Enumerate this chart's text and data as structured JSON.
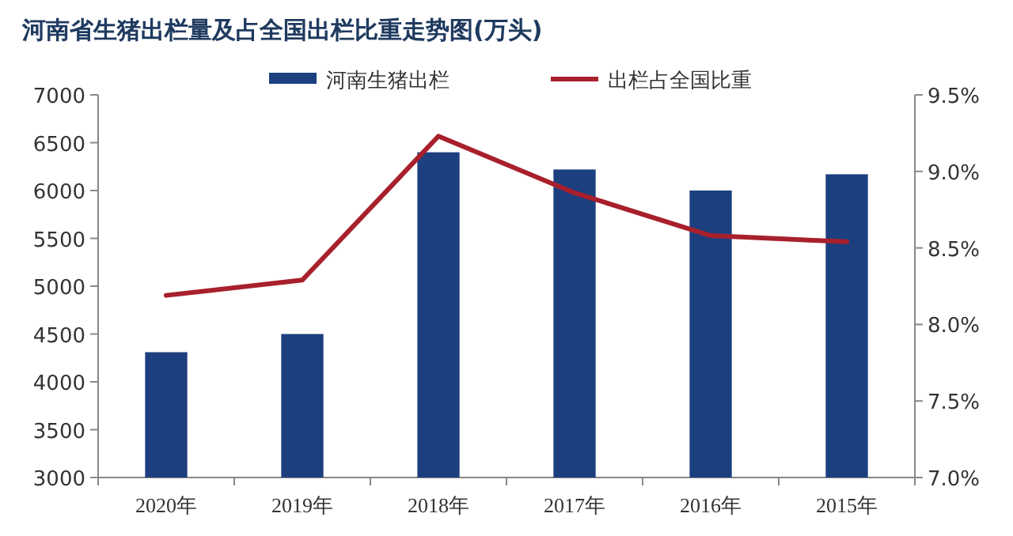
{
  "chart_data": {
    "type": "bar",
    "title": "河南省生猪出栏量及占全国出栏比重走势图(万头)",
    "categories": [
      "2020年",
      "2019年",
      "2018年",
      "2017年",
      "2016年",
      "2015年"
    ],
    "series": [
      {
        "name": "河南生猪出栏",
        "color": "#1c3f7f",
        "values": [
          4310,
          4500,
          6400,
          6220,
          6000,
          6170
        ]
      },
      {
        "name": "出栏占全国比重",
        "type": "line",
        "axis": "y2",
        "color": "#a8202c",
        "values": [
          8.19,
          8.29,
          9.23,
          8.86,
          8.58,
          8.54
        ]
      }
    ],
    "ylim": [
      3000,
      7000
    ],
    "yticks": [
      3000,
      3500,
      4000,
      4500,
      5000,
      5500,
      6000,
      6500,
      7000
    ],
    "y2lim": [
      7.0,
      9.5
    ],
    "y2ticks": [
      {
        "value": 7.0,
        "label": "7.0%"
      },
      {
        "value": 7.5,
        "label": "7.5%"
      },
      {
        "value": 8.0,
        "label": "8.0%"
      },
      {
        "value": 8.5,
        "label": "8.5%"
      },
      {
        "value": 9.0,
        "label": "9.0%"
      },
      {
        "value": 9.5,
        "label": "9.5%"
      }
    ],
    "legend": "top",
    "grid": false
  }
}
